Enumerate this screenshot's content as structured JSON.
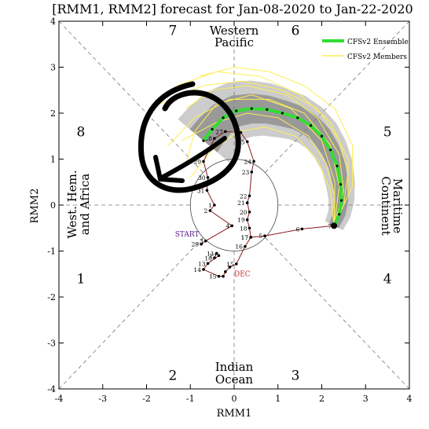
{
  "chart_data": {
    "type": "line",
    "title": "[RMM1, RMM2] forecast for Jan-08-2020 to Jan-22-2020",
    "xlabel": "RMM1",
    "ylabel": "RMM2",
    "xlim": [
      -4,
      4
    ],
    "ylim": [
      -4,
      4
    ],
    "x_ticks": [
      "-4",
      "-3",
      "-2",
      "-1",
      "0",
      "1",
      "2",
      "3",
      "4"
    ],
    "y_ticks": [
      "-4",
      "-3",
      "-2",
      "-1",
      "0",
      "1",
      "2",
      "3",
      "4"
    ],
    "grid": false,
    "legend_position": "top-right",
    "phase_numbers": [
      {
        "label": "1",
        "x": -3.5,
        "y": -1.6
      },
      {
        "label": "2",
        "x": -1.4,
        "y": -3.7
      },
      {
        "label": "3",
        "x": 1.4,
        "y": -3.7
      },
      {
        "label": "4",
        "x": 3.5,
        "y": -1.6
      },
      {
        "label": "5",
        "x": 3.5,
        "y": 1.6
      },
      {
        "label": "6",
        "x": 1.4,
        "y": 3.8
      },
      {
        "label": "7",
        "x": -1.4,
        "y": 3.8
      },
      {
        "label": "8",
        "x": -3.5,
        "y": 1.6
      }
    ],
    "regions": {
      "top": [
        "Western",
        "Pacific"
      ],
      "bottom": [
        "Indian",
        "Ocean"
      ],
      "left": [
        "West. Hem.",
        "and Africa"
      ],
      "right": [
        "Maritime",
        "Continent"
      ]
    },
    "legend": {
      "ensemble": "CFSv2 Ensemble",
      "members": "CFSv2 Members",
      "ensemble_color": "#33dd33",
      "members_color": "#ffee55"
    },
    "colors": {
      "observed_line": "#8b1a1a",
      "start_label": "#551a8b",
      "dec_label": "#cc2222",
      "shade_outer": "#cccccc",
      "shade_inner": "#999999",
      "annotation": "#000000"
    },
    "start_label": "START",
    "dec_label": "DEC",
    "observed": [
      {
        "x": -0.45,
        "y": -1.15,
        "label": "10"
      },
      {
        "x": -0.4,
        "y": -1.05,
        "label": "11"
      },
      {
        "x": -0.35,
        "y": -1.1,
        "label": "12"
      },
      {
        "x": -0.6,
        "y": -1.27,
        "label": "13"
      },
      {
        "x": -0.7,
        "y": -1.4,
        "label": "14"
      },
      {
        "x": -0.35,
        "y": -1.55,
        "label": "15"
      },
      {
        "x": -0.25,
        "y": -1.55,
        "label": ""
      },
      {
        "x": -0.2,
        "y": -1.45,
        "label": ""
      },
      {
        "x": -0.1,
        "y": -1.35,
        "label": ""
      },
      {
        "x": 0.05,
        "y": -1.28,
        "label": "15"
      },
      {
        "x": 0.25,
        "y": -0.9,
        "label": "16"
      },
      {
        "x": 0.38,
        "y": -0.7,
        "label": "17"
      },
      {
        "x": 0.7,
        "y": -0.67,
        "label": "5"
      },
      {
        "x": 1.55,
        "y": -0.52,
        "label": "6"
      },
      {
        "x": 2.28,
        "y": -0.45,
        "label": "7"
      }
    ],
    "observed_jan": [
      {
        "x": 0.38,
        "y": -0.7,
        "label": "17"
      },
      {
        "x": 0.35,
        "y": -0.5,
        "label": "18"
      },
      {
        "x": 0.3,
        "y": -0.32,
        "label": "19"
      },
      {
        "x": 0.35,
        "y": -0.15,
        "label": "20"
      },
      {
        "x": 0.3,
        "y": 0.05,
        "label": "21"
      },
      {
        "x": 0.35,
        "y": 0.2,
        "label": "22"
      },
      {
        "x": 0.4,
        "y": 0.72,
        "label": "23"
      },
      {
        "x": 0.45,
        "y": 0.95,
        "label": "24"
      },
      {
        "x": 0.3,
        "y": 1.38,
        "label": "25"
      },
      {
        "x": 0.15,
        "y": 1.58,
        "label": ""
      },
      {
        "x": -0.2,
        "y": 1.6,
        "label": "27"
      },
      {
        "x": -0.45,
        "y": 1.45,
        "label": "28"
      },
      {
        "x": -0.7,
        "y": 0.95,
        "label": "29"
      },
      {
        "x": -0.6,
        "y": 0.6,
        "label": "30"
      },
      {
        "x": -0.62,
        "y": 0.32,
        "label": "31"
      },
      {
        "x": -0.45,
        "y": 0.0,
        "label": "1"
      },
      {
        "x": -0.55,
        "y": -0.12,
        "label": "2"
      },
      {
        "x": -0.05,
        "y": -0.45,
        "label": "4"
      },
      {
        "x": -0.65,
        "y": -0.78,
        "label": "3"
      },
      {
        "x": -0.75,
        "y": -0.85,
        "label": "29"
      }
    ],
    "ensemble_mean": [
      {
        "x": 2.28,
        "y": -0.45
      },
      {
        "x": 2.4,
        "y": -0.2
      },
      {
        "x": 2.45,
        "y": 0.1
      },
      {
        "x": 2.43,
        "y": 0.45
      },
      {
        "x": 2.35,
        "y": 0.85
      },
      {
        "x": 2.2,
        "y": 1.2
      },
      {
        "x": 2.0,
        "y": 1.5
      },
      {
        "x": 1.75,
        "y": 1.73
      },
      {
        "x": 1.45,
        "y": 1.9
      },
      {
        "x": 1.1,
        "y": 2.0
      },
      {
        "x": 0.75,
        "y": 2.08
      },
      {
        "x": 0.4,
        "y": 2.1
      },
      {
        "x": 0.05,
        "y": 2.05
      },
      {
        "x": -0.25,
        "y": 1.9
      },
      {
        "x": -0.5,
        "y": 1.65
      },
      {
        "x": -0.7,
        "y": 1.4
      }
    ],
    "members": [
      [
        {
          "x": 2.28,
          "y": -0.45
        },
        {
          "x": 2.6,
          "y": 0.2
        },
        {
          "x": 2.6,
          "y": 1.0
        },
        {
          "x": 2.2,
          "y": 1.8
        },
        {
          "x": 1.5,
          "y": 2.4
        },
        {
          "x": 0.6,
          "y": 2.8
        },
        {
          "x": -0.4,
          "y": 2.9
        },
        {
          "x": -1.3,
          "y": 2.6
        }
      ],
      [
        {
          "x": 2.28,
          "y": -0.45
        },
        {
          "x": 2.5,
          "y": 0.3
        },
        {
          "x": 2.4,
          "y": 1.1
        },
        {
          "x": 1.9,
          "y": 1.9
        },
        {
          "x": 1.2,
          "y": 2.4
        },
        {
          "x": 0.3,
          "y": 2.6
        },
        {
          "x": -0.5,
          "y": 2.5
        },
        {
          "x": -1.1,
          "y": 2.1
        }
      ],
      [
        {
          "x": 2.28,
          "y": -0.45
        },
        {
          "x": 2.3,
          "y": 0.2
        },
        {
          "x": 2.1,
          "y": 0.9
        },
        {
          "x": 1.7,
          "y": 1.5
        },
        {
          "x": 1.0,
          "y": 1.9
        },
        {
          "x": 0.3,
          "y": 2.0
        },
        {
          "x": -0.4,
          "y": 1.8
        },
        {
          "x": -1.2,
          "y": 1.4
        }
      ],
      [
        {
          "x": 2.28,
          "y": -0.45
        },
        {
          "x": 2.7,
          "y": 0.4
        },
        {
          "x": 2.7,
          "y": 1.3
        },
        {
          "x": 2.3,
          "y": 2.1
        },
        {
          "x": 1.6,
          "y": 2.6
        },
        {
          "x": 0.8,
          "y": 2.9
        },
        {
          "x": 0.0,
          "y": 3.0
        },
        {
          "x": -0.8,
          "y": 2.8
        }
      ],
      [
        {
          "x": 2.28,
          "y": -0.45
        },
        {
          "x": 2.2,
          "y": 0.3
        },
        {
          "x": 1.9,
          "y": 1.0
        },
        {
          "x": 1.4,
          "y": 1.5
        },
        {
          "x": 0.7,
          "y": 1.7
        },
        {
          "x": 0.1,
          "y": 1.6
        },
        {
          "x": -0.5,
          "y": 1.2
        },
        {
          "x": -1.0,
          "y": 0.6
        }
      ],
      [
        {
          "x": 2.28,
          "y": -0.45
        },
        {
          "x": 2.5,
          "y": 0.0
        },
        {
          "x": 2.6,
          "y": 0.7
        },
        {
          "x": 2.4,
          "y": 1.4
        },
        {
          "x": 1.9,
          "y": 2.1
        },
        {
          "x": 1.1,
          "y": 2.5
        },
        {
          "x": 0.2,
          "y": 2.7
        },
        {
          "x": -0.7,
          "y": 2.6
        },
        {
          "x": -1.7,
          "y": 2.2
        }
      ],
      [
        {
          "x": 2.28,
          "y": -0.45
        },
        {
          "x": 2.4,
          "y": 0.4
        },
        {
          "x": 2.2,
          "y": 1.3
        },
        {
          "x": 1.6,
          "y": 2.0
        },
        {
          "x": 0.8,
          "y": 2.3
        },
        {
          "x": -0.1,
          "y": 2.3
        },
        {
          "x": -0.9,
          "y": 1.9
        },
        {
          "x": -1.5,
          "y": 1.3
        }
      ],
      [
        {
          "x": 2.28,
          "y": -0.45
        },
        {
          "x": 2.3,
          "y": 0.5
        },
        {
          "x": 2.0,
          "y": 1.4
        },
        {
          "x": 1.3,
          "y": 2.1
        },
        {
          "x": 0.4,
          "y": 2.4
        },
        {
          "x": -0.4,
          "y": 2.2
        },
        {
          "x": -0.9,
          "y": 1.6
        },
        {
          "x": -1.1,
          "y": 0.9
        }
      ]
    ]
  }
}
